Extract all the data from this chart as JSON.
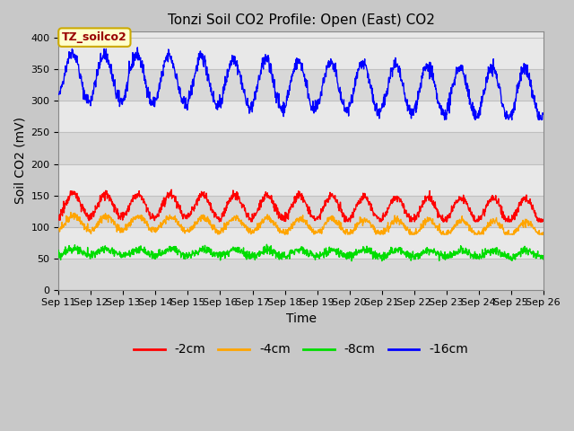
{
  "title": "Tonzi Soil CO2 Profile: Open (East) CO2",
  "xlabel": "Time",
  "ylabel": "Soil CO2 (mV)",
  "ylim": [
    0,
    410
  ],
  "yticks": [
    0,
    50,
    100,
    150,
    200,
    250,
    300,
    350,
    400
  ],
  "x_start_day": 11,
  "x_end_day": 26,
  "x_tick_days": [
    11,
    12,
    13,
    14,
    15,
    16,
    17,
    18,
    19,
    20,
    21,
    22,
    23,
    24,
    25,
    26
  ],
  "x_tick_labels": [
    "Sep 11",
    "Sep 12",
    "Sep 13",
    "Sep 14",
    "Sep 15",
    "Sep 16",
    "Sep 17",
    "Sep 18",
    "Sep 19",
    "Sep 20",
    "Sep 21",
    "Sep 22",
    "Sep 23",
    "Sep 24",
    "Sep 25",
    "Sep 26"
  ],
  "series": {
    "neg2cm": {
      "label": "-2cm",
      "color": "#ff0000"
    },
    "neg4cm": {
      "label": "-4cm",
      "color": "#ffa500"
    },
    "neg8cm": {
      "label": "-8cm",
      "color": "#00dd00"
    },
    "neg16cm": {
      "label": "-16cm",
      "color": "#0000ff"
    }
  },
  "annotation_text": "TZ_soilco2",
  "plot_bg_color": "#e8e8e8",
  "fig_bg_color": "#c8c8c8",
  "band_colors": [
    "#d8d8d8",
    "#e8e8e8"
  ],
  "grid_color": "#c0c0c0",
  "title_fontsize": 11,
  "label_fontsize": 10,
  "tick_fontsize": 8,
  "legend_fontsize": 10
}
